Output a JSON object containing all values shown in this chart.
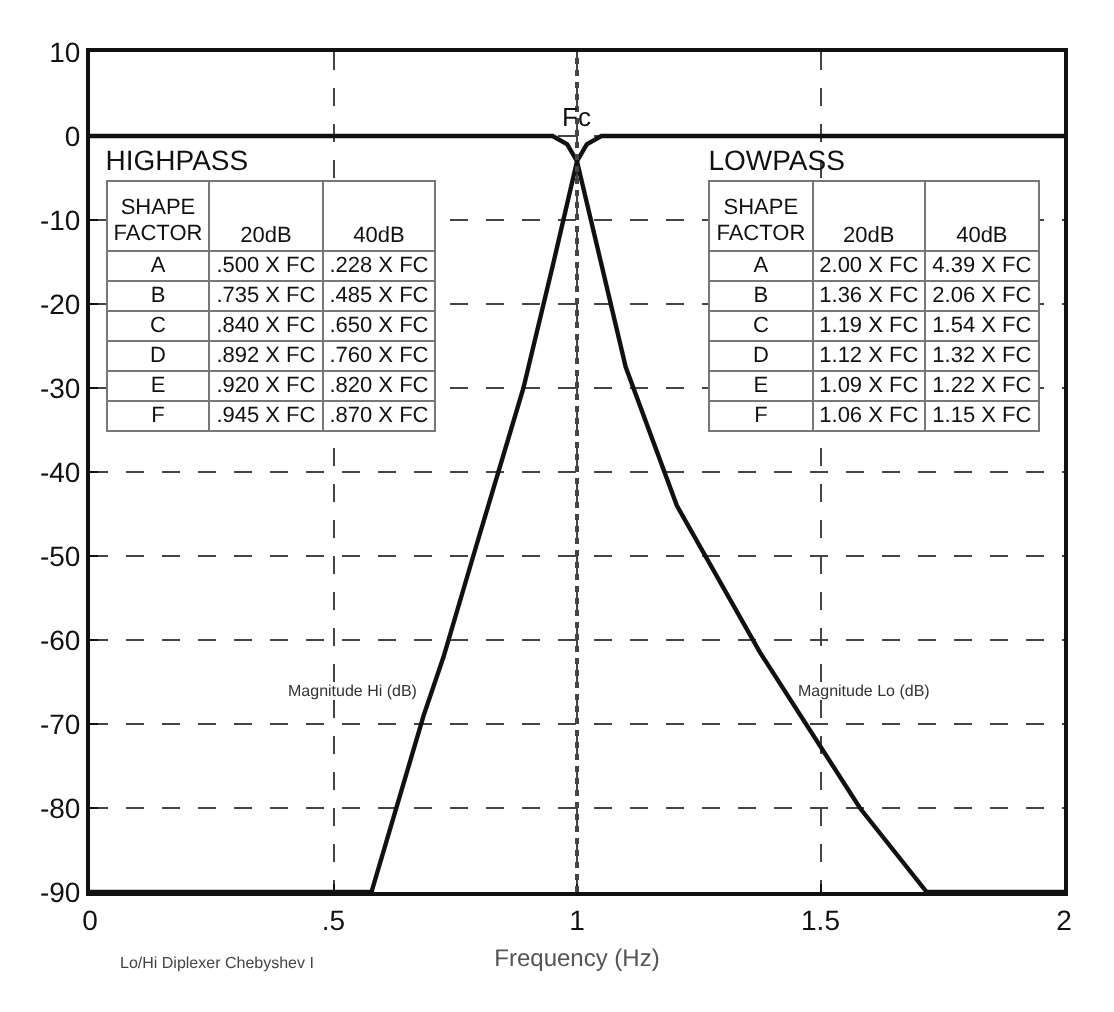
{
  "chart_data": [
    {
      "type": "line",
      "xlabel": "Frequency (Hz)",
      "xlim": [
        0,
        2
      ],
      "xticks": [
        0,
        {
          "value": 0.5,
          "label": ".5"
        },
        1,
        1.5,
        2
      ],
      "ylim": [
        -90,
        10
      ],
      "yticks": [
        -90,
        -80,
        -70,
        -60,
        -50,
        -40,
        -30,
        -20,
        -10,
        0,
        10
      ],
      "grid": true,
      "legend": false,
      "marker": "none",
      "line_style": "solid",
      "series": [
        {
          "name": "Magnitude Hi (dB)",
          "color": "#111111",
          "x": [
            0,
            0.578,
            0.685,
            0.726,
            0.787,
            0.89,
            0.952,
            1.0,
            1.02,
            1.05,
            2
          ],
          "values": [
            -90,
            -90,
            -69,
            -62,
            -50,
            -30,
            -15,
            -3,
            -1,
            0,
            0
          ]
        },
        {
          "name": "Magnitude Lo (dB)",
          "color": "#111111",
          "x": [
            0,
            0.95,
            0.98,
            1.0,
            1.1,
            1.205,
            1.376,
            1.581,
            1.718,
            2
          ],
          "values": [
            0,
            0,
            -1,
            -3,
            -27.5,
            -44,
            -61.5,
            -80,
            -90,
            -90
          ]
        }
      ],
      "ref_lines": [
        {
          "axis": "x",
          "value": 1,
          "label": "Fc",
          "line_style": "dotted"
        }
      ],
      "annotations": [
        "Lo/Hi Diplexer Chebyshev I"
      ]
    },
    {
      "type": "other",
      "title": "HIGHPASS",
      "annotations": [
        "SHAPE FACTOR",
        "20dB",
        "40dB",
        "A",
        ".500 X FC",
        ".228 X FC",
        "B",
        ".735 X FC",
        ".485 X FC",
        "C",
        ".840 X FC",
        ".650 X FC",
        "D",
        ".892 X FC",
        ".760 X FC",
        "E",
        ".920 X FC",
        ".820 X FC",
        "F",
        ".945 X FC",
        ".870 X FC"
      ]
    },
    {
      "type": "other",
      "title": "LOWPASS",
      "annotations": [
        "SHAPE FACTOR",
        "20dB",
        "40dB",
        "A",
        "2.00 X FC",
        "4.39 X FC",
        "B",
        "1.36 X FC",
        "2.06 X FC",
        "C",
        "1.19 X FC",
        "1.54 X FC",
        "D",
        "1.12 X FC",
        "1.32 X FC",
        "E",
        "1.09 X FC",
        "1.22 X FC",
        "F",
        "1.06 X FC",
        "1.15 X FC"
      ]
    }
  ]
}
